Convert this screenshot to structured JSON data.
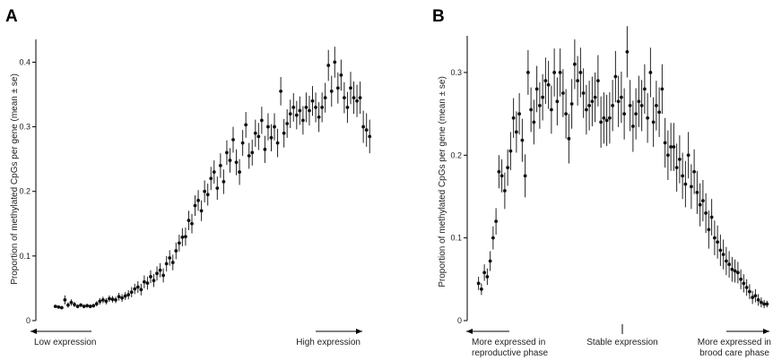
{
  "chart_data": [
    {
      "type": "scatter",
      "panel": "A",
      "title": "",
      "xlabel": "",
      "ylabel": "Proportion of methylated CpGs per gene (mean ± se)",
      "ylim": [
        0,
        0.42
      ],
      "yticks": [
        0,
        0.1,
        0.2,
        0.3,
        0.4
      ],
      "ytick_labels": [
        "0",
        "0.1",
        "0.2",
        "0.3",
        "0.4"
      ],
      "xlim": [
        0.5,
        100.5
      ],
      "grid": false,
      "x_note_left": "Low expression",
      "x_note_right": "High expression",
      "points": [
        {
          "x": 1,
          "y": 0.022,
          "se": 0.002
        },
        {
          "x": 2,
          "y": 0.021,
          "se": 0.002
        },
        {
          "x": 3,
          "y": 0.02,
          "se": 0.002
        },
        {
          "x": 4,
          "y": 0.032,
          "se": 0.007
        },
        {
          "x": 5,
          "y": 0.024,
          "se": 0.004
        },
        {
          "x": 6,
          "y": 0.028,
          "se": 0.005
        },
        {
          "x": 7,
          "y": 0.025,
          "se": 0.004
        },
        {
          "x": 8,
          "y": 0.022,
          "se": 0.003
        },
        {
          "x": 9,
          "y": 0.024,
          "se": 0.003
        },
        {
          "x": 10,
          "y": 0.022,
          "se": 0.003
        },
        {
          "x": 11,
          "y": 0.023,
          "se": 0.003
        },
        {
          "x": 12,
          "y": 0.022,
          "se": 0.003
        },
        {
          "x": 13,
          "y": 0.023,
          "se": 0.003
        },
        {
          "x": 14,
          "y": 0.026,
          "se": 0.004
        },
        {
          "x": 15,
          "y": 0.03,
          "se": 0.005
        },
        {
          "x": 16,
          "y": 0.032,
          "se": 0.005
        },
        {
          "x": 17,
          "y": 0.03,
          "se": 0.005
        },
        {
          "x": 18,
          "y": 0.034,
          "se": 0.005
        },
        {
          "x": 19,
          "y": 0.033,
          "se": 0.005
        },
        {
          "x": 20,
          "y": 0.032,
          "se": 0.005
        },
        {
          "x": 21,
          "y": 0.037,
          "se": 0.006
        },
        {
          "x": 22,
          "y": 0.035,
          "se": 0.006
        },
        {
          "x": 23,
          "y": 0.038,
          "se": 0.006
        },
        {
          "x": 24,
          "y": 0.04,
          "se": 0.007
        },
        {
          "x": 25,
          "y": 0.044,
          "se": 0.008
        },
        {
          "x": 26,
          "y": 0.049,
          "se": 0.008
        },
        {
          "x": 27,
          "y": 0.052,
          "se": 0.009
        },
        {
          "x": 28,
          "y": 0.048,
          "se": 0.009
        },
        {
          "x": 29,
          "y": 0.06,
          "se": 0.01
        },
        {
          "x": 30,
          "y": 0.058,
          "se": 0.01
        },
        {
          "x": 31,
          "y": 0.068,
          "se": 0.01
        },
        {
          "x": 32,
          "y": 0.062,
          "se": 0.01
        },
        {
          "x": 33,
          "y": 0.073,
          "se": 0.011
        },
        {
          "x": 34,
          "y": 0.078,
          "se": 0.011
        },
        {
          "x": 35,
          "y": 0.07,
          "se": 0.011
        },
        {
          "x": 36,
          "y": 0.088,
          "se": 0.012
        },
        {
          "x": 37,
          "y": 0.097,
          "se": 0.012
        },
        {
          "x": 38,
          "y": 0.09,
          "se": 0.012
        },
        {
          "x": 39,
          "y": 0.108,
          "se": 0.013
        },
        {
          "x": 40,
          "y": 0.12,
          "se": 0.013
        },
        {
          "x": 41,
          "y": 0.129,
          "se": 0.014
        },
        {
          "x": 42,
          "y": 0.13,
          "se": 0.014
        },
        {
          "x": 43,
          "y": 0.155,
          "se": 0.015
        },
        {
          "x": 44,
          "y": 0.15,
          "se": 0.015
        },
        {
          "x": 45,
          "y": 0.178,
          "se": 0.016
        },
        {
          "x": 46,
          "y": 0.186,
          "se": 0.016
        },
        {
          "x": 47,
          "y": 0.17,
          "se": 0.016
        },
        {
          "x": 48,
          "y": 0.2,
          "se": 0.017
        },
        {
          "x": 49,
          "y": 0.195,
          "se": 0.017
        },
        {
          "x": 50,
          "y": 0.22,
          "se": 0.018
        },
        {
          "x": 51,
          "y": 0.23,
          "se": 0.018
        },
        {
          "x": 52,
          "y": 0.205,
          "se": 0.018
        },
        {
          "x": 53,
          "y": 0.24,
          "se": 0.019
        },
        {
          "x": 54,
          "y": 0.215,
          "se": 0.019
        },
        {
          "x": 55,
          "y": 0.26,
          "se": 0.019
        },
        {
          "x": 56,
          "y": 0.248,
          "se": 0.019
        },
        {
          "x": 57,
          "y": 0.28,
          "se": 0.02
        },
        {
          "x": 58,
          "y": 0.245,
          "se": 0.02
        },
        {
          "x": 59,
          "y": 0.23,
          "se": 0.02
        },
        {
          "x": 60,
          "y": 0.275,
          "se": 0.02
        },
        {
          "x": 61,
          "y": 0.303,
          "se": 0.02
        },
        {
          "x": 62,
          "y": 0.255,
          "se": 0.02
        },
        {
          "x": 63,
          "y": 0.26,
          "se": 0.02
        },
        {
          "x": 64,
          "y": 0.29,
          "se": 0.021
        },
        {
          "x": 65,
          "y": 0.285,
          "se": 0.021
        },
        {
          "x": 66,
          "y": 0.31,
          "se": 0.021
        },
        {
          "x": 67,
          "y": 0.265,
          "se": 0.021
        },
        {
          "x": 68,
          "y": 0.3,
          "se": 0.021
        },
        {
          "x": 69,
          "y": 0.283,
          "se": 0.021
        },
        {
          "x": 70,
          "y": 0.3,
          "se": 0.021
        },
        {
          "x": 71,
          "y": 0.275,
          "se": 0.022
        },
        {
          "x": 72,
          "y": 0.355,
          "se": 0.022
        },
        {
          "x": 73,
          "y": 0.29,
          "se": 0.022
        },
        {
          "x": 74,
          "y": 0.305,
          "se": 0.022
        },
        {
          "x": 75,
          "y": 0.32,
          "se": 0.022
        },
        {
          "x": 76,
          "y": 0.33,
          "se": 0.022
        },
        {
          "x": 77,
          "y": 0.318,
          "se": 0.022
        },
        {
          "x": 78,
          "y": 0.325,
          "se": 0.022
        },
        {
          "x": 79,
          "y": 0.31,
          "se": 0.022
        },
        {
          "x": 80,
          "y": 0.33,
          "se": 0.023
        },
        {
          "x": 81,
          "y": 0.325,
          "se": 0.023
        },
        {
          "x": 82,
          "y": 0.34,
          "se": 0.023
        },
        {
          "x": 83,
          "y": 0.33,
          "se": 0.023
        },
        {
          "x": 84,
          "y": 0.315,
          "se": 0.023
        },
        {
          "x": 85,
          "y": 0.33,
          "se": 0.023
        },
        {
          "x": 86,
          "y": 0.345,
          "se": 0.023
        },
        {
          "x": 87,
          "y": 0.395,
          "se": 0.024
        },
        {
          "x": 88,
          "y": 0.355,
          "se": 0.024
        },
        {
          "x": 89,
          "y": 0.4,
          "se": 0.024
        },
        {
          "x": 90,
          "y": 0.36,
          "se": 0.024
        },
        {
          "x": 91,
          "y": 0.38,
          "se": 0.024
        },
        {
          "x": 92,
          "y": 0.345,
          "se": 0.024
        },
        {
          "x": 93,
          "y": 0.33,
          "se": 0.024
        },
        {
          "x": 94,
          "y": 0.36,
          "se": 0.025
        },
        {
          "x": 95,
          "y": 0.345,
          "se": 0.025
        },
        {
          "x": 96,
          "y": 0.34,
          "se": 0.025
        },
        {
          "x": 97,
          "y": 0.345,
          "se": 0.025
        },
        {
          "x": 98,
          "y": 0.3,
          "se": 0.025
        },
        {
          "x": 99,
          "y": 0.295,
          "se": 0.026
        },
        {
          "x": 100,
          "y": 0.285,
          "se": 0.026
        }
      ]
    },
    {
      "type": "scatter",
      "panel": "B",
      "title": "",
      "xlabel": "",
      "ylabel": "Proportion of methylated CpGs per gene (mean ± se)",
      "ylim": [
        0,
        0.34
      ],
      "yticks": [
        0,
        0.1,
        0.2,
        0.3
      ],
      "ytick_labels": [
        "0",
        "0.1",
        "0.2",
        "0.3"
      ],
      "xlim": [
        0.5,
        100.5
      ],
      "grid": false,
      "x_note_left": [
        "More expressed in",
        "reproductive phase"
      ],
      "x_note_center": "Stable expression",
      "x_note_right": [
        "More expressed in",
        "brood care phase"
      ],
      "points": [
        {
          "x": 1,
          "y": 0.045,
          "se": 0.008
        },
        {
          "x": 2,
          "y": 0.038,
          "se": 0.007
        },
        {
          "x": 3,
          "y": 0.058,
          "se": 0.01
        },
        {
          "x": 4,
          "y": 0.053,
          "se": 0.01
        },
        {
          "x": 5,
          "y": 0.072,
          "se": 0.012
        },
        {
          "x": 6,
          "y": 0.1,
          "se": 0.014
        },
        {
          "x": 7,
          "y": 0.12,
          "se": 0.016
        },
        {
          "x": 8,
          "y": 0.18,
          "se": 0.02
        },
        {
          "x": 9,
          "y": 0.175,
          "se": 0.02
        },
        {
          "x": 10,
          "y": 0.157,
          "se": 0.022
        },
        {
          "x": 11,
          "y": 0.185,
          "se": 0.022
        },
        {
          "x": 12,
          "y": 0.205,
          "se": 0.023
        },
        {
          "x": 13,
          "y": 0.245,
          "se": 0.024
        },
        {
          "x": 14,
          "y": 0.228,
          "se": 0.025
        },
        {
          "x": 15,
          "y": 0.25,
          "se": 0.025
        },
        {
          "x": 16,
          "y": 0.218,
          "se": 0.026
        },
        {
          "x": 17,
          "y": 0.175,
          "se": 0.026
        },
        {
          "x": 18,
          "y": 0.3,
          "se": 0.027
        },
        {
          "x": 19,
          "y": 0.255,
          "se": 0.027
        },
        {
          "x": 20,
          "y": 0.24,
          "se": 0.027
        },
        {
          "x": 21,
          "y": 0.28,
          "se": 0.028
        },
        {
          "x": 22,
          "y": 0.26,
          "se": 0.028
        },
        {
          "x": 23,
          "y": 0.27,
          "se": 0.028
        },
        {
          "x": 24,
          "y": 0.29,
          "se": 0.028
        },
        {
          "x": 25,
          "y": 0.285,
          "se": 0.029
        },
        {
          "x": 26,
          "y": 0.255,
          "se": 0.029
        },
        {
          "x": 27,
          "y": 0.3,
          "se": 0.029
        },
        {
          "x": 28,
          "y": 0.265,
          "se": 0.029
        },
        {
          "x": 29,
          "y": 0.3,
          "se": 0.029
        },
        {
          "x": 30,
          "y": 0.275,
          "se": 0.029
        },
        {
          "x": 31,
          "y": 0.25,
          "se": 0.03
        },
        {
          "x": 32,
          "y": 0.22,
          "se": 0.03
        },
        {
          "x": 33,
          "y": 0.262,
          "se": 0.03
        },
        {
          "x": 34,
          "y": 0.31,
          "se": 0.03
        },
        {
          "x": 35,
          "y": 0.29,
          "se": 0.03
        },
        {
          "x": 36,
          "y": 0.3,
          "se": 0.03
        },
        {
          "x": 37,
          "y": 0.275,
          "se": 0.03
        },
        {
          "x": 38,
          "y": 0.255,
          "se": 0.03
        },
        {
          "x": 39,
          "y": 0.26,
          "se": 0.03
        },
        {
          "x": 40,
          "y": 0.265,
          "se": 0.03
        },
        {
          "x": 41,
          "y": 0.27,
          "se": 0.03
        },
        {
          "x": 42,
          "y": 0.29,
          "se": 0.031
        },
        {
          "x": 43,
          "y": 0.24,
          "se": 0.031
        },
        {
          "x": 44,
          "y": 0.245,
          "se": 0.031
        },
        {
          "x": 45,
          "y": 0.242,
          "se": 0.031
        },
        {
          "x": 46,
          "y": 0.245,
          "se": 0.031
        },
        {
          "x": 47,
          "y": 0.26,
          "se": 0.031
        },
        {
          "x": 48,
          "y": 0.295,
          "se": 0.031
        },
        {
          "x": 49,
          "y": 0.265,
          "se": 0.031
        },
        {
          "x": 50,
          "y": 0.27,
          "se": 0.031
        },
        {
          "x": 51,
          "y": 0.25,
          "se": 0.031
        },
        {
          "x": 52,
          "y": 0.325,
          "se": 0.031
        },
        {
          "x": 53,
          "y": 0.26,
          "se": 0.031
        },
        {
          "x": 54,
          "y": 0.235,
          "se": 0.031
        },
        {
          "x": 55,
          "y": 0.25,
          "se": 0.031
        },
        {
          "x": 56,
          "y": 0.265,
          "se": 0.031
        },
        {
          "x": 57,
          "y": 0.26,
          "se": 0.031
        },
        {
          "x": 58,
          "y": 0.28,
          "se": 0.03
        },
        {
          "x": 59,
          "y": 0.245,
          "se": 0.03
        },
        {
          "x": 60,
          "y": 0.3,
          "se": 0.03
        },
        {
          "x": 61,
          "y": 0.24,
          "se": 0.03
        },
        {
          "x": 62,
          "y": 0.26,
          "se": 0.03
        },
        {
          "x": 63,
          "y": 0.252,
          "se": 0.03
        },
        {
          "x": 64,
          "y": 0.28,
          "se": 0.03
        },
        {
          "x": 65,
          "y": 0.215,
          "se": 0.03
        },
        {
          "x": 66,
          "y": 0.2,
          "se": 0.03
        },
        {
          "x": 67,
          "y": 0.21,
          "se": 0.029
        },
        {
          "x": 68,
          "y": 0.21,
          "se": 0.029
        },
        {
          "x": 69,
          "y": 0.185,
          "se": 0.029
        },
        {
          "x": 70,
          "y": 0.195,
          "se": 0.029
        },
        {
          "x": 71,
          "y": 0.175,
          "se": 0.028
        },
        {
          "x": 72,
          "y": 0.165,
          "se": 0.028
        },
        {
          "x": 73,
          "y": 0.2,
          "se": 0.028
        },
        {
          "x": 74,
          "y": 0.162,
          "se": 0.027
        },
        {
          "x": 75,
          "y": 0.18,
          "se": 0.027
        },
        {
          "x": 76,
          "y": 0.155,
          "se": 0.026
        },
        {
          "x": 77,
          "y": 0.14,
          "se": 0.026
        },
        {
          "x": 78,
          "y": 0.145,
          "se": 0.025
        },
        {
          "x": 79,
          "y": 0.13,
          "se": 0.024
        },
        {
          "x": 80,
          "y": 0.11,
          "se": 0.023
        },
        {
          "x": 81,
          "y": 0.125,
          "se": 0.022
        },
        {
          "x": 82,
          "y": 0.1,
          "se": 0.021
        },
        {
          "x": 83,
          "y": 0.095,
          "se": 0.02
        },
        {
          "x": 84,
          "y": 0.085,
          "se": 0.019
        },
        {
          "x": 85,
          "y": 0.08,
          "se": 0.018
        },
        {
          "x": 86,
          "y": 0.072,
          "se": 0.017
        },
        {
          "x": 87,
          "y": 0.068,
          "se": 0.016
        },
        {
          "x": 88,
          "y": 0.062,
          "se": 0.015
        },
        {
          "x": 89,
          "y": 0.06,
          "se": 0.014
        },
        {
          "x": 90,
          "y": 0.058,
          "se": 0.013
        },
        {
          "x": 91,
          "y": 0.05,
          "se": 0.012
        },
        {
          "x": 92,
          "y": 0.045,
          "se": 0.011
        },
        {
          "x": 93,
          "y": 0.04,
          "se": 0.01
        },
        {
          "x": 94,
          "y": 0.035,
          "se": 0.009
        },
        {
          "x": 95,
          "y": 0.028,
          "se": 0.008
        },
        {
          "x": 96,
          "y": 0.03,
          "se": 0.008
        },
        {
          "x": 97,
          "y": 0.025,
          "se": 0.007
        },
        {
          "x": 98,
          "y": 0.022,
          "se": 0.006
        },
        {
          "x": 99,
          "y": 0.02,
          "se": 0.005
        },
        {
          "x": 100,
          "y": 0.02,
          "se": 0.004
        }
      ]
    }
  ],
  "panels": {
    "a": {
      "letter": "A"
    },
    "b": {
      "letter": "B"
    }
  }
}
